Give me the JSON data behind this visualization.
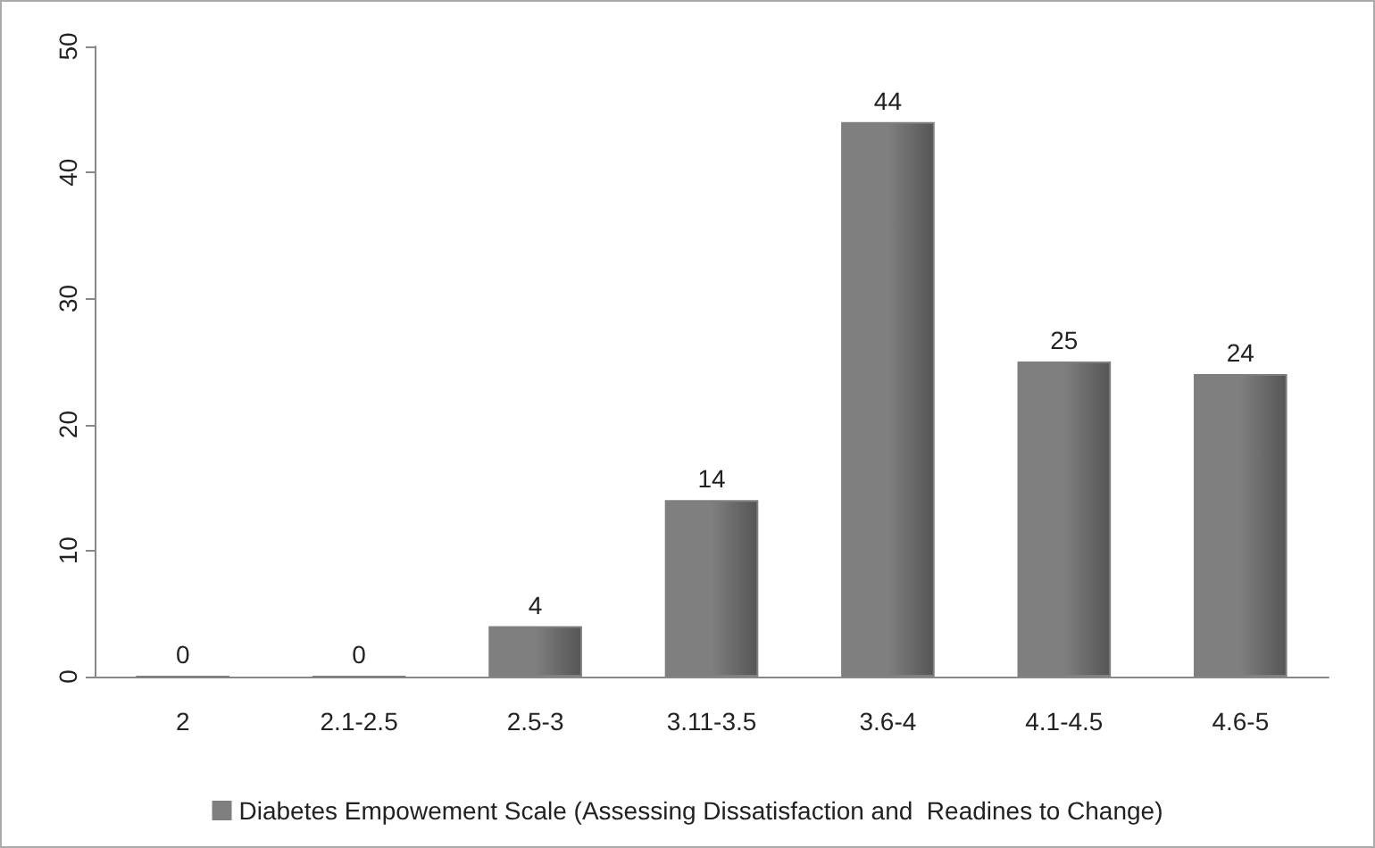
{
  "chart_data": {
    "type": "bar",
    "categories": [
      "2",
      "2.1-2.5",
      "2.5-3",
      "3.11-3.5",
      "3.6-4",
      "4.1-4.5",
      "4.6-5"
    ],
    "series": [
      {
        "name": "Diabetes Empowement Scale (Assessing Dissatisfaction and  Readines to Change)",
        "color": "#7f7f7f",
        "values": [
          0,
          0,
          4,
          14,
          44,
          25,
          24
        ]
      }
    ],
    "ylim": [
      0,
      50
    ],
    "yticks": [
      0,
      10,
      20,
      30,
      40,
      50
    ],
    "grid": false,
    "legend": "bottom",
    "data_labels": true
  }
}
